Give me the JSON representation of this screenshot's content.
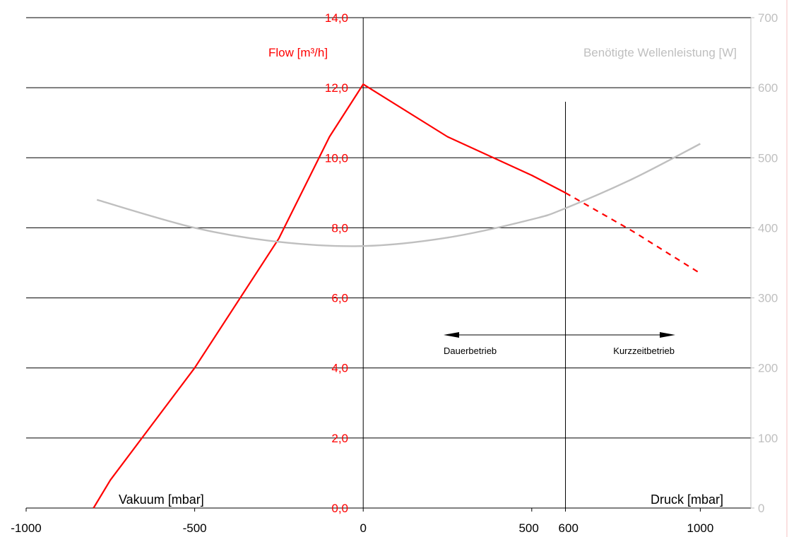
{
  "chart_data": {
    "type": "line",
    "left_axis_label": "Flow [m³/h]",
    "right_axis_label": "Benötigte Wellenleistung [W]",
    "x_label_left": "Vakuum [mbar]",
    "x_label_right": "Druck [mbar]",
    "xlim": [
      -1000,
      1150
    ],
    "ylim_left": [
      0,
      14
    ],
    "ylim_right": [
      0,
      700
    ],
    "x_ticks": [
      "-1000",
      "-500",
      "0",
      "500",
      "600",
      "1000"
    ],
    "y_left_ticks": [
      "0,0",
      "2,0",
      "4,0",
      "6,0",
      "8,0",
      "10,0",
      "12,0",
      "14,0"
    ],
    "y_right_ticks": [
      "0",
      "100",
      "200",
      "300",
      "400",
      "500",
      "600",
      "700"
    ],
    "marker_x": 600,
    "annotations": {
      "left_arrow_label": "Dauerbetrieb",
      "right_arrow_label": "Kurzzeitbetrieb"
    },
    "colors": {
      "flow": "#ff0000",
      "power": "#bfbfbf",
      "grid": "#000000"
    },
    "series": [
      {
        "axis": "left",
        "style": "solid",
        "x": [
          -800,
          -750,
          -500,
          -250,
          -100,
          0,
          250,
          500,
          600
        ],
        "y": [
          0.0,
          0.8,
          4.0,
          7.7,
          10.6,
          12.1,
          10.6,
          9.5,
          9.0
        ]
      },
      {
        "axis": "left",
        "style": "dashed",
        "x": [
          600,
          800,
          1000
        ],
        "y": [
          9.0,
          7.9,
          6.7
        ]
      },
      {
        "axis": "right",
        "style": "solid",
        "x": [
          -790,
          -500,
          -250,
          0,
          250,
          500,
          600,
          800,
          1000
        ],
        "y": [
          440,
          400,
          380,
          374,
          386,
          412,
          428,
          470,
          520
        ]
      }
    ]
  }
}
